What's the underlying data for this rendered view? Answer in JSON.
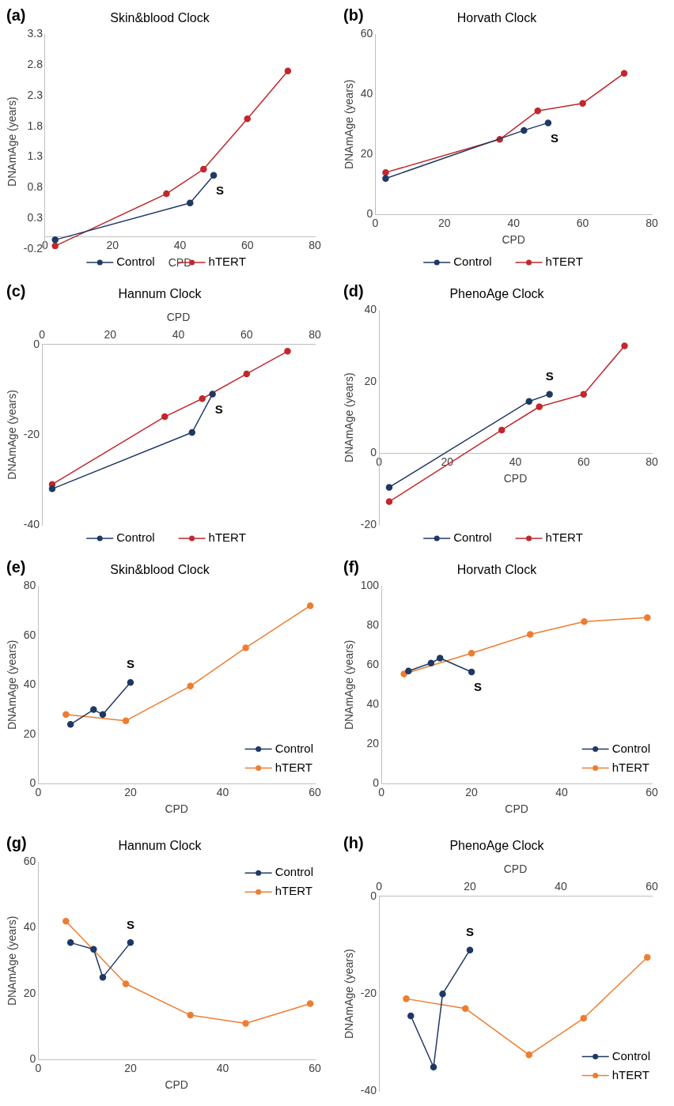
{
  "chart_data": [
    {
      "type": "line",
      "title": "Skin&blood Clock",
      "xlabel": "CPD",
      "ylabel": "DNAmAge (years)",
      "xlim": [
        0,
        80
      ],
      "xticks": [
        0,
        20,
        40,
        60,
        80
      ],
      "ylim": [
        -0.2,
        3.3
      ],
      "yticks": [
        -0.2,
        0.3,
        0.8,
        1.3,
        1.8,
        2.3,
        2.8,
        3.3
      ],
      "marker": "circle",
      "legend": "bottom",
      "grid": false,
      "annotations": [
        "(a)",
        "S"
      ],
      "series": [
        {
          "name": "Control",
          "color": "#1f3864",
          "x": [
            3,
            43,
            50
          ],
          "values": [
            -0.05,
            0.55,
            1.0
          ]
        },
        {
          "name": "hTERT",
          "color": "#c0282d",
          "x": [
            3,
            36,
            47,
            60,
            72
          ],
          "values": [
            -0.15,
            0.7,
            1.1,
            1.92,
            2.7
          ]
        }
      ]
    },
    {
      "type": "line",
      "title": "Horvath Clock",
      "xlabel": "CPD",
      "ylabel": "DNAmAge (years)",
      "xlim": [
        0,
        80
      ],
      "xticks": [
        0,
        20,
        40,
        60,
        80
      ],
      "ylim": [
        0,
        60
      ],
      "yticks": [
        0,
        20,
        40,
        60
      ],
      "marker": "circle",
      "legend": "bottom",
      "grid": false,
      "annotations": [
        "(b)",
        "S"
      ],
      "series": [
        {
          "name": "Control",
          "color": "#1f3864",
          "x": [
            3,
            43,
            50
          ],
          "values": [
            12,
            28,
            30.5
          ]
        },
        {
          "name": "hTERT",
          "color": "#c0282d",
          "x": [
            3,
            36,
            47,
            60,
            72
          ],
          "values": [
            14,
            25,
            34.5,
            37,
            47
          ]
        }
      ]
    },
    {
      "type": "line",
      "title": "Hannum Clock",
      "xlabel": "CPD",
      "ylabel": "DNAmAge (years)",
      "xlim": [
        0,
        80
      ],
      "xticks": [
        0,
        20,
        40,
        60,
        80
      ],
      "ylim": [
        -40,
        0
      ],
      "yticks": [
        -40,
        -20,
        0
      ],
      "marker": "circle",
      "legend": "bottom",
      "grid": false,
      "annotations": [
        "(c)",
        "S"
      ],
      "series": [
        {
          "name": "Control",
          "color": "#1f3864",
          "x": [
            3,
            44,
            50
          ],
          "values": [
            -32,
            -19.5,
            -11
          ]
        },
        {
          "name": "hTERT",
          "color": "#c0282d",
          "x": [
            3,
            36,
            47,
            60,
            72
          ],
          "values": [
            -31,
            -16,
            -12,
            -6.5,
            -1.5
          ]
        }
      ]
    },
    {
      "type": "line",
      "title": "PhenoAge Clock",
      "xlabel": "CPD",
      "ylabel": "DNAmAge (years)",
      "xlim": [
        0,
        80
      ],
      "xticks": [
        0,
        20,
        40,
        60,
        80
      ],
      "ylim": [
        -20,
        40
      ],
      "yticks": [
        -20,
        0,
        20,
        40
      ],
      "marker": "circle",
      "legend": "bottom",
      "grid": false,
      "annotations": [
        "(d)",
        "S"
      ],
      "series": [
        {
          "name": "Control",
          "color": "#1f3864",
          "x": [
            3,
            44,
            50
          ],
          "values": [
            -9.5,
            14.5,
            16.5
          ]
        },
        {
          "name": "hTERT",
          "color": "#c0282d",
          "x": [
            3,
            36,
            47,
            60,
            72
          ],
          "values": [
            -13.5,
            6.5,
            13,
            16.5,
            30
          ]
        }
      ]
    },
    {
      "type": "line",
      "title": "Skin&blood Clock",
      "xlabel": "CPD",
      "ylabel": "DNAmAge (years)",
      "xlim": [
        0,
        60
      ],
      "xticks": [
        0,
        20,
        40,
        60
      ],
      "ylim": [
        0,
        80
      ],
      "yticks": [
        0,
        20,
        40,
        60,
        80
      ],
      "marker": "circle",
      "legend": "bottom right",
      "grid": false,
      "annotations": [
        "(e)",
        "S"
      ],
      "series": [
        {
          "name": "Control",
          "color": "#1f3864",
          "x": [
            7,
            12,
            14,
            20
          ],
          "values": [
            24,
            30,
            28,
            41
          ]
        },
        {
          "name": "hTERT",
          "color": "#ed7d31",
          "x": [
            6,
            19,
            33,
            45,
            59
          ],
          "values": [
            28,
            25.5,
            39.5,
            55,
            72
          ]
        }
      ]
    },
    {
      "type": "line",
      "title": "Horvath Clock",
      "xlabel": "CPD",
      "ylabel": "DNAmAge (years)",
      "xlim": [
        0,
        60
      ],
      "xticks": [
        0,
        20,
        40,
        60
      ],
      "ylim": [
        0,
        100
      ],
      "yticks": [
        0,
        20,
        40,
        60,
        80,
        100
      ],
      "marker": "circle",
      "legend": "bottom right",
      "grid": false,
      "annotations": [
        "(f)",
        "S"
      ],
      "series": [
        {
          "name": "Control",
          "color": "#1f3864",
          "x": [
            6,
            11,
            13,
            20
          ],
          "values": [
            57,
            61,
            63.5,
            56.5
          ]
        },
        {
          "name": "hTERT",
          "color": "#ed7d31",
          "x": [
            5,
            20,
            33,
            45,
            59
          ],
          "values": [
            55.5,
            66,
            75.5,
            82,
            84
          ]
        }
      ]
    },
    {
      "type": "line",
      "title": "Hannum Clock",
      "xlabel": "CPD",
      "ylabel": "DNAmAge (years)",
      "xlim": [
        0,
        60
      ],
      "xticks": [
        0,
        20,
        40,
        60
      ],
      "ylim": [
        0,
        60
      ],
      "yticks": [
        0,
        20,
        40,
        60
      ],
      "marker": "circle",
      "legend": "top right",
      "grid": false,
      "annotations": [
        "(g)",
        "S"
      ],
      "series": [
        {
          "name": "Control",
          "color": "#1f3864",
          "x": [
            7,
            12,
            14,
            20
          ],
          "values": [
            35.5,
            33.5,
            25,
            35.5
          ]
        },
        {
          "name": "hTERT",
          "color": "#ed7d31",
          "x": [
            6,
            19,
            33,
            45,
            59
          ],
          "values": [
            42,
            23,
            13.5,
            11,
            17
          ]
        }
      ]
    },
    {
      "type": "line",
      "title": "PhenoAge Clock",
      "xlabel": "CPD",
      "ylabel": "DNAmAge (years)",
      "xlim": [
        0,
        60
      ],
      "xticks": [
        0,
        20,
        40,
        60
      ],
      "ylim": [
        -40,
        0
      ],
      "yticks": [
        -40,
        -20,
        0
      ],
      "marker": "circle",
      "legend": "bottom right",
      "grid": false,
      "annotations": [
        "(h)",
        "S"
      ],
      "series": [
        {
          "name": "Control",
          "color": "#1f3864",
          "x": [
            7,
            12,
            14,
            20
          ],
          "values": [
            -24.5,
            -35,
            -20,
            -11
          ]
        },
        {
          "name": "hTERT",
          "color": "#ed7d31",
          "x": [
            6,
            19,
            33,
            45,
            59
          ],
          "values": [
            -21,
            -23,
            -32.5,
            -25,
            -12.5
          ]
        }
      ]
    }
  ]
}
